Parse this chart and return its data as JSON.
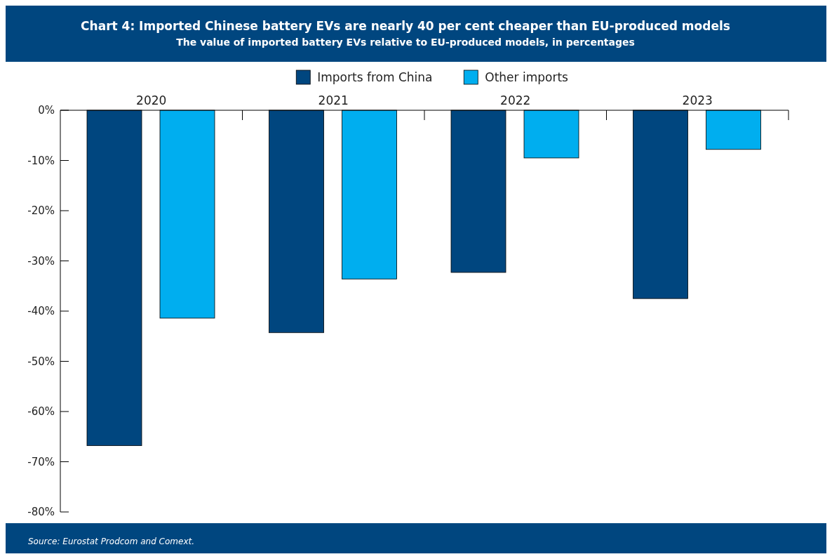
{
  "chart_data": {
    "type": "bar",
    "title": "Chart 4: Imported Chinese battery EVs are nearly 40 per cent cheaper than EU-produced models",
    "subtitle": "The value of imported battery EVs relative to EU-produced models, in percentages",
    "categories": [
      "2020",
      "2021",
      "2022",
      "2023"
    ],
    "series": [
      {
        "name": "Imports from China",
        "color": "#00467f",
        "values": [
          -66.8,
          -44.3,
          -32.3,
          -37.5
        ]
      },
      {
        "name": "Other imports",
        "color": "#00aeef",
        "values": [
          -41.4,
          -33.6,
          -9.5,
          -7.8
        ]
      }
    ],
    "ylim": [
      -80,
      0
    ],
    "yticks": [
      {
        "value": 0,
        "label": "0%"
      },
      {
        "value": -10,
        "label": "-10%"
      },
      {
        "value": -20,
        "label": "-20%"
      },
      {
        "value": -30,
        "label": "-30%"
      },
      {
        "value": -40,
        "label": "-40%"
      },
      {
        "value": -50,
        "label": "-50%"
      },
      {
        "value": -60,
        "label": "-60%"
      },
      {
        "value": -70,
        "label": "-70%"
      },
      {
        "value": -80,
        "label": "-80%"
      }
    ],
    "grid": false,
    "legend": "top",
    "annotations": [
      "Source: Eurostat Prodcom and Comext."
    ]
  }
}
